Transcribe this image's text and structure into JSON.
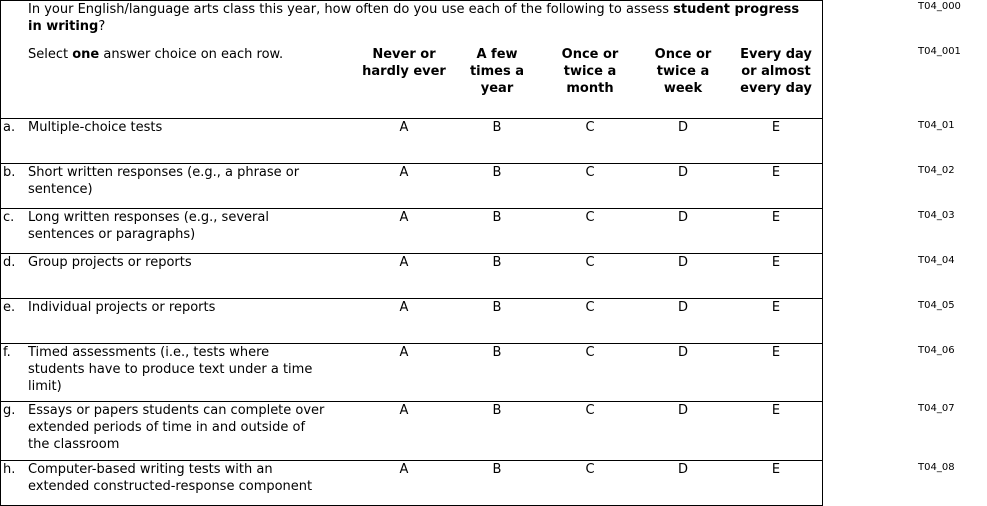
{
  "question": {
    "segments": [
      {
        "text": "In your English/language arts class this year, how often do you use each of the following to assess ",
        "bold": false
      },
      {
        "text": "student progress in writing",
        "bold": true
      },
      {
        "text": "?",
        "bold": false
      }
    ],
    "code": "T04_000"
  },
  "instruction": {
    "segments": [
      {
        "text": "Select ",
        "bold": false
      },
      {
        "text": "one",
        "bold": true
      },
      {
        "text": " answer choice on each row.",
        "bold": false
      }
    ],
    "code": "T04_001"
  },
  "columns": [
    [
      "Never or",
      "hardly ever"
    ],
    [
      "A few",
      "times a",
      "year"
    ],
    [
      "Once or",
      "twice a",
      "month"
    ],
    [
      "Once or",
      "twice a",
      "week"
    ],
    [
      "Every day",
      "or almost",
      "every day"
    ]
  ],
  "rows": [
    {
      "letter": "a.",
      "lines": [
        "Multiple-choice tests"
      ],
      "choices": [
        "A",
        "B",
        "C",
        "D",
        "E"
      ],
      "code": "T04_01"
    },
    {
      "letter": "b.",
      "lines": [
        "Short written responses (e.g., a phrase or",
        "sentence)"
      ],
      "choices": [
        "A",
        "B",
        "C",
        "D",
        "E"
      ],
      "code": "T04_02"
    },
    {
      "letter": "c.",
      "lines": [
        "Long written responses (e.g., several",
        "sentences or paragraphs)"
      ],
      "choices": [
        "A",
        "B",
        "C",
        "D",
        "E"
      ],
      "code": "T04_03"
    },
    {
      "letter": "d.",
      "lines": [
        "Group projects or reports"
      ],
      "choices": [
        "A",
        "B",
        "C",
        "D",
        "E"
      ],
      "code": "T04_04"
    },
    {
      "letter": "e.",
      "lines": [
        "Individual projects or reports"
      ],
      "choices": [
        "A",
        "B",
        "C",
        "D",
        "E"
      ],
      "code": "T04_05"
    },
    {
      "letter": "f.",
      "lines": [
        "Timed assessments (i.e., tests where",
        "students have to produce text under a time",
        "limit)"
      ],
      "choices": [
        "A",
        "B",
        "C",
        "D",
        "E"
      ],
      "code": "T04_06"
    },
    {
      "letter": "g.",
      "lines": [
        "Essays or papers students can complete over",
        "extended periods of time in and outside of",
        "the classroom"
      ],
      "choices": [
        "A",
        "B",
        "C",
        "D",
        "E"
      ],
      "code": "T04_07"
    },
    {
      "letter": "h.",
      "lines": [
        "Computer-based writing tests with an",
        "extended constructed-response component"
      ],
      "choices": [
        "A",
        "B",
        "C",
        "D",
        "E"
      ],
      "code": "T04_08"
    }
  ]
}
